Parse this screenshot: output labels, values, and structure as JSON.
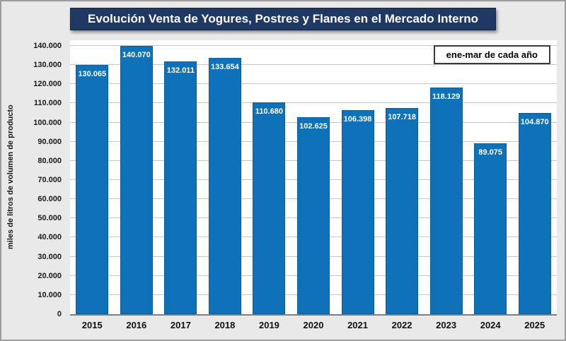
{
  "colors": {
    "bar": "#0f72b9",
    "title_bg": "#1f3864",
    "page_bg": "#e9e9e9",
    "grid": "#c6c6c6",
    "axis": "#7f7f7f",
    "value_label_text": "#ffffff"
  },
  "chart_data": {
    "type": "bar",
    "title": "Evolución Venta de Yogures, Postres y Flanes en el Mercado Interno",
    "annotation": "ene-mar de cada año",
    "xlabel": "",
    "ylabel": "miles de litros de volumen de producto",
    "categories": [
      "2015",
      "2016",
      "2017",
      "2018",
      "2019",
      "2020",
      "2021",
      "2022",
      "2023",
      "2024",
      "2025"
    ],
    "values": [
      130065,
      140070,
      132011,
      133654,
      110680,
      102625,
      106398,
      107718,
      118129,
      89075,
      104870
    ],
    "value_labels": [
      "130.065",
      "140.070",
      "132.011",
      "133.654",
      "110.680",
      "102.625",
      "106.398",
      "107.718",
      "118.129",
      "89.075",
      "104.870"
    ],
    "ylim": [
      0,
      140000
    ],
    "ytick_step": 10000,
    "ytick_labels": [
      "0",
      "10.000",
      "20.000",
      "30.000",
      "40.000",
      "50.000",
      "60.000",
      "70.000",
      "80.000",
      "90.000",
      "100.000",
      "110.000",
      "120.000",
      "130.000",
      "140.000"
    ],
    "grid": "horizontal",
    "legend_position": "none"
  }
}
